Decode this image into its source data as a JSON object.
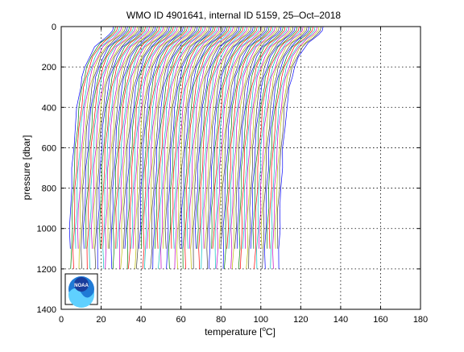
{
  "chart_data": {
    "type": "line",
    "title": "WMO ID 4901641, internal ID 5159, 25–Oct–2018",
    "xlabel_prefix": "temperature [",
    "xlabel_degree": "o",
    "xlabel_suffix": "C]",
    "ylabel": "pressure [dbar]",
    "xlim": [
      0,
      180
    ],
    "ylim": [
      0,
      1400
    ],
    "y_reversed": true,
    "grid": true,
    "grid_style": "dotted",
    "xticks": [
      0,
      20,
      40,
      60,
      80,
      100,
      120,
      140,
      160,
      180
    ],
    "yticks": [
      0,
      200,
      400,
      600,
      800,
      1000,
      1200,
      1400
    ],
    "profile_count": 106,
    "profile_offset_step": 1,
    "series_colors": [
      "#0000ff",
      "#008000",
      "#ff0000",
      "#00bfbf",
      "#bf00bf",
      "#bfbf00",
      "#404040"
    ],
    "representative_profile": {
      "pressure": [
        0,
        20,
        40,
        60,
        80,
        100,
        150,
        200,
        250,
        300,
        400,
        500,
        600,
        700,
        800,
        900,
        1000,
        1100,
        1200
      ],
      "temperature_offset": [
        26.2,
        25.8,
        24.0,
        21.5,
        19.0,
        17.0,
        14.0,
        12.0,
        10.5,
        9.5,
        8.0,
        7.0,
        6.2,
        5.6,
        5.1,
        4.7,
        4.4,
        4.2,
        4.0
      ]
    },
    "logo": {
      "icon": "noaa-logo",
      "text": "NOAA"
    }
  }
}
